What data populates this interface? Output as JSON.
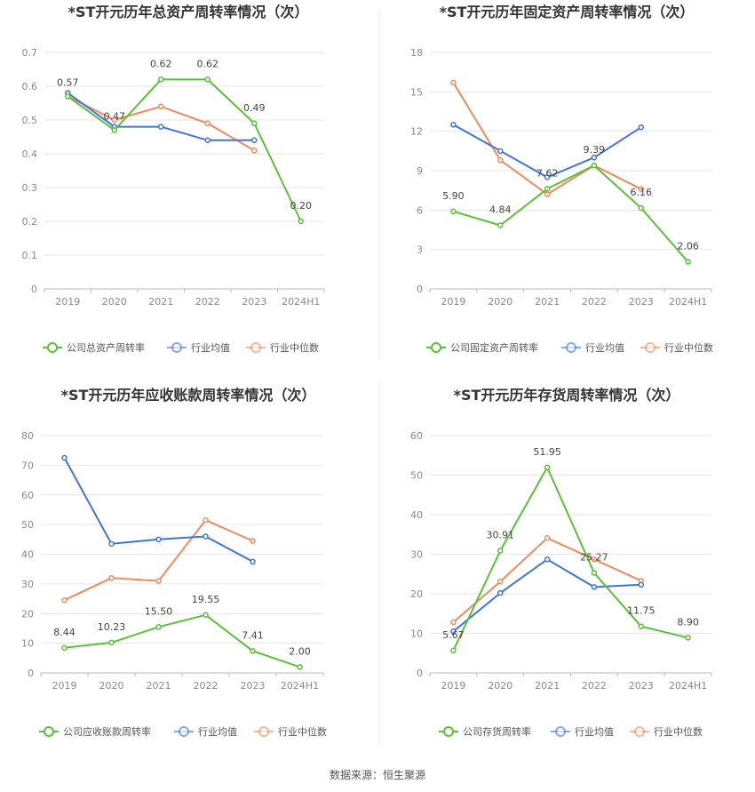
{
  "source_text": "数据来源：恒生聚源",
  "colors": {
    "company": "#5ac036",
    "avg": "#3e74dc",
    "median": "#f08a5d",
    "grid": "#e6e6e6",
    "axis": "#bbbbbb"
  },
  "chart_data": [
    {
      "type": "line",
      "title": "*ST开元历年总资产周转率情况（次）",
      "categories": [
        "2019",
        "2020",
        "2021",
        "2022",
        "2023",
        "2024H1"
      ],
      "ylim": [
        0,
        0.7
      ],
      "yticks": [
        "0",
        "0.1",
        "0.2",
        "0.3",
        "0.4",
        "0.5",
        "0.6",
        "0.7"
      ],
      "grid": true,
      "legend_position": "bottom",
      "series": [
        {
          "name": "公司总资产周转率",
          "color": "#5ac036",
          "values": [
            0.57,
            0.47,
            0.62,
            0.62,
            0.49,
            0.2
          ],
          "labels": [
            "0.57",
            "0.47",
            "0.62",
            "0.62",
            "0.49",
            "0.20"
          ]
        },
        {
          "name": "行业均值",
          "color": "#3e74dc",
          "values": [
            0.58,
            0.48,
            0.48,
            0.44,
            0.44,
            null
          ]
        },
        {
          "name": "行业中位数",
          "color": "#f08a5d",
          "values": [
            0.57,
            0.5,
            0.54,
            0.49,
            0.41,
            null
          ]
        }
      ]
    },
    {
      "type": "line",
      "title": "*ST开元历年固定资产周转率情况（次）",
      "categories": [
        "2019",
        "2020",
        "2021",
        "2022",
        "2023",
        "2024H1"
      ],
      "ylim": [
        0,
        18
      ],
      "yticks": [
        "0",
        "3",
        "6",
        "9",
        "12",
        "15",
        "18"
      ],
      "grid": true,
      "legend_position": "bottom",
      "series": [
        {
          "name": "公司固定资产周转率",
          "color": "#5ac036",
          "values": [
            5.9,
            4.84,
            7.62,
            9.39,
            6.16,
            2.06
          ],
          "labels": [
            "5.90",
            "4.84",
            "7.62",
            "9.39",
            "6.16",
            "2.06"
          ]
        },
        {
          "name": "行业均值",
          "color": "#3e74dc",
          "values": [
            12.5,
            10.5,
            8.5,
            10.0,
            12.3,
            null
          ]
        },
        {
          "name": "行业中位数",
          "color": "#f08a5d",
          "values": [
            15.7,
            9.8,
            7.2,
            9.4,
            7.6,
            null
          ]
        }
      ]
    },
    {
      "type": "line",
      "title": "*ST开元历年应收账款周转率情况（次）",
      "categories": [
        "2019",
        "2020",
        "2021",
        "2022",
        "2023",
        "2024H1"
      ],
      "ylim": [
        0,
        80
      ],
      "yticks": [
        "0",
        "10",
        "20",
        "30",
        "40",
        "50",
        "60",
        "70",
        "80"
      ],
      "grid": true,
      "legend_position": "bottom",
      "series": [
        {
          "name": "公司应收账款周转率",
          "color": "#5ac036",
          "values": [
            8.44,
            10.23,
            15.5,
            19.55,
            7.41,
            2.0
          ],
          "labels": [
            "8.44",
            "10.23",
            "15.50",
            "19.55",
            "7.41",
            "2.00"
          ]
        },
        {
          "name": "行业均值",
          "color": "#3e74dc",
          "values": [
            72.5,
            43.5,
            45.0,
            46.0,
            37.5,
            null
          ]
        },
        {
          "name": "行业中位数",
          "color": "#f08a5d",
          "values": [
            24.5,
            32.0,
            31.0,
            51.5,
            44.5,
            null
          ]
        }
      ]
    },
    {
      "type": "line",
      "title": "*ST开元历年存货周转率情况（次）",
      "categories": [
        "2019",
        "2020",
        "2021",
        "2022",
        "2023",
        "2024H1"
      ],
      "ylim": [
        0,
        60
      ],
      "yticks": [
        "0",
        "10",
        "20",
        "30",
        "40",
        "50",
        "60"
      ],
      "grid": true,
      "legend_position": "bottom",
      "series": [
        {
          "name": "公司存货周转率",
          "color": "#5ac036",
          "values": [
            5.67,
            30.91,
            51.95,
            25.27,
            11.75,
            8.9
          ],
          "labels": [
            "5.67",
            "30.91",
            "51.95",
            "25.27",
            "11.75",
            "8.90"
          ]
        },
        {
          "name": "行业均值",
          "color": "#3e74dc",
          "values": [
            10.5,
            20.2,
            28.7,
            21.7,
            22.3,
            null
          ]
        },
        {
          "name": "行业中位数",
          "color": "#f08a5d",
          "values": [
            12.8,
            23.1,
            34.1,
            28.7,
            23.3,
            null
          ]
        }
      ]
    }
  ]
}
